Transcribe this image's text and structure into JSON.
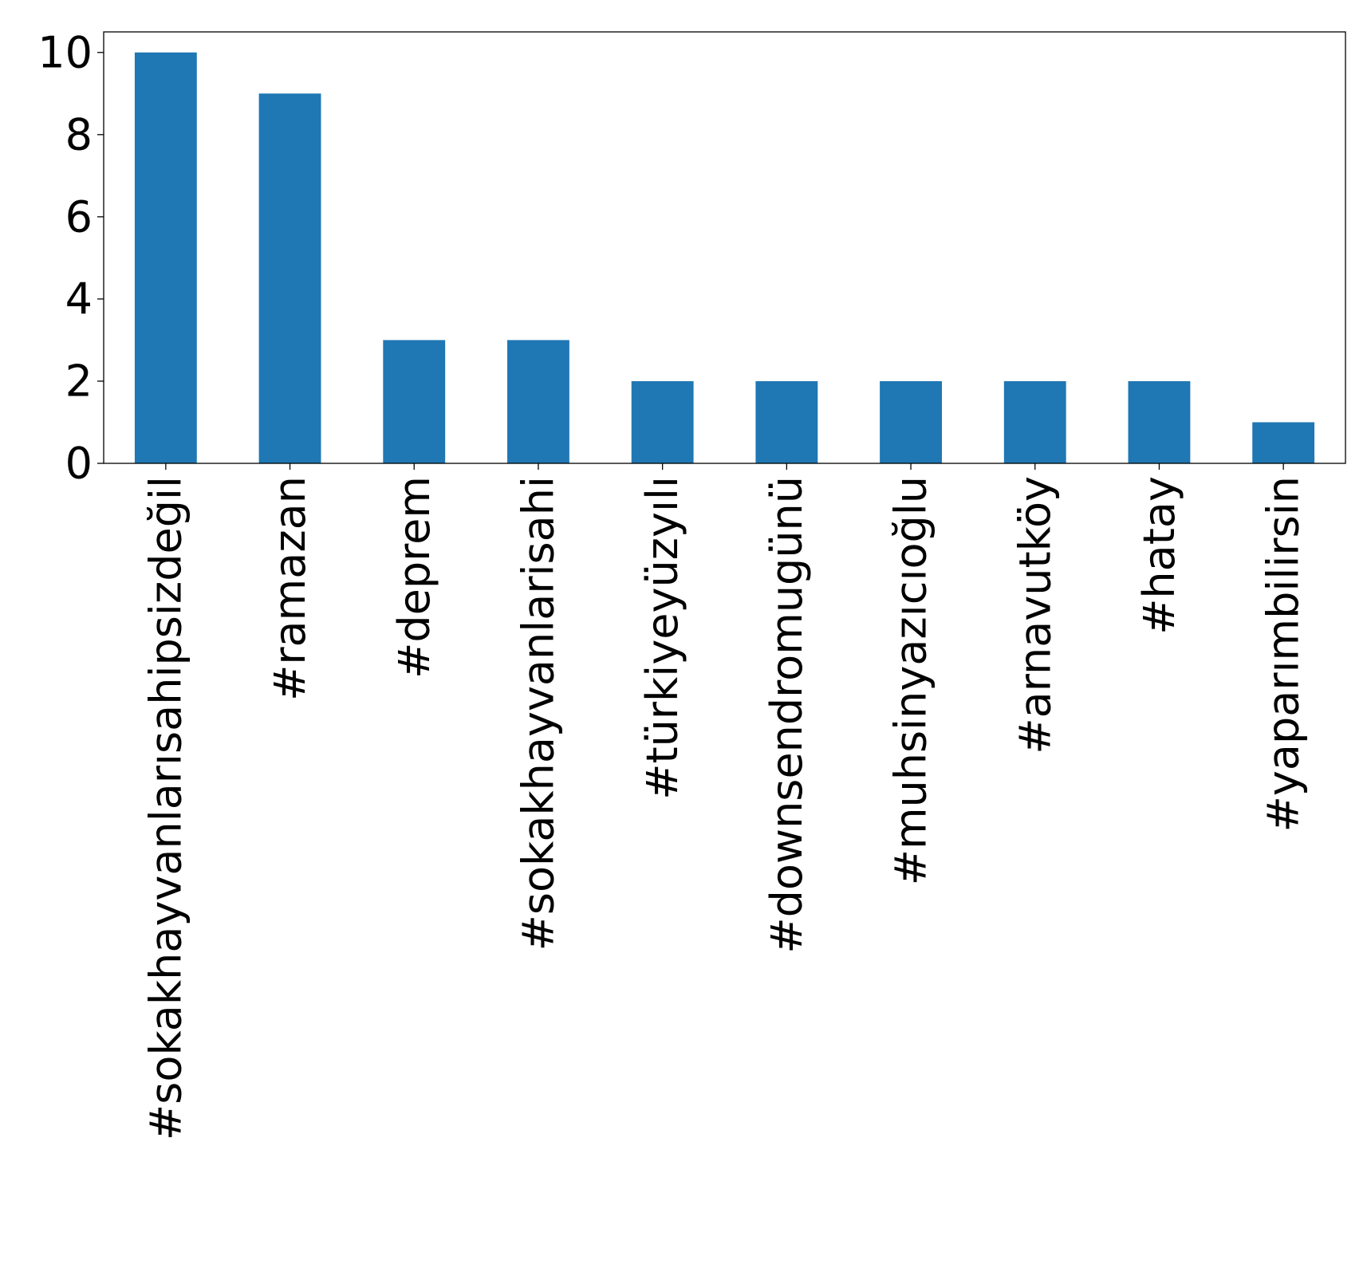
{
  "chart_data": {
    "type": "bar",
    "title": "",
    "xlabel": "",
    "ylabel": "",
    "categories": [
      "#sokakhayvanlarısahipsizdeğil",
      "#ramazan",
      "#deprem",
      "#sokakhayvanlarisahi",
      "#türkiyeyüzyılı",
      "#downsendromugünü",
      "#muhsinyazıcıoğlu",
      "#arnavutköy",
      "#hatay",
      "#yaparımbilirsin"
    ],
    "values": [
      10,
      9,
      3,
      3,
      2,
      2,
      2,
      2,
      2,
      1
    ],
    "ylim": [
      0,
      10.5
    ],
    "yticks": [
      0,
      2,
      4,
      6,
      8,
      10
    ],
    "ytick_labels": [
      "0",
      "2",
      "4",
      "6",
      "8",
      "10"
    ],
    "grid": false,
    "legend": "none",
    "bar_color": "#1f77b4"
  }
}
